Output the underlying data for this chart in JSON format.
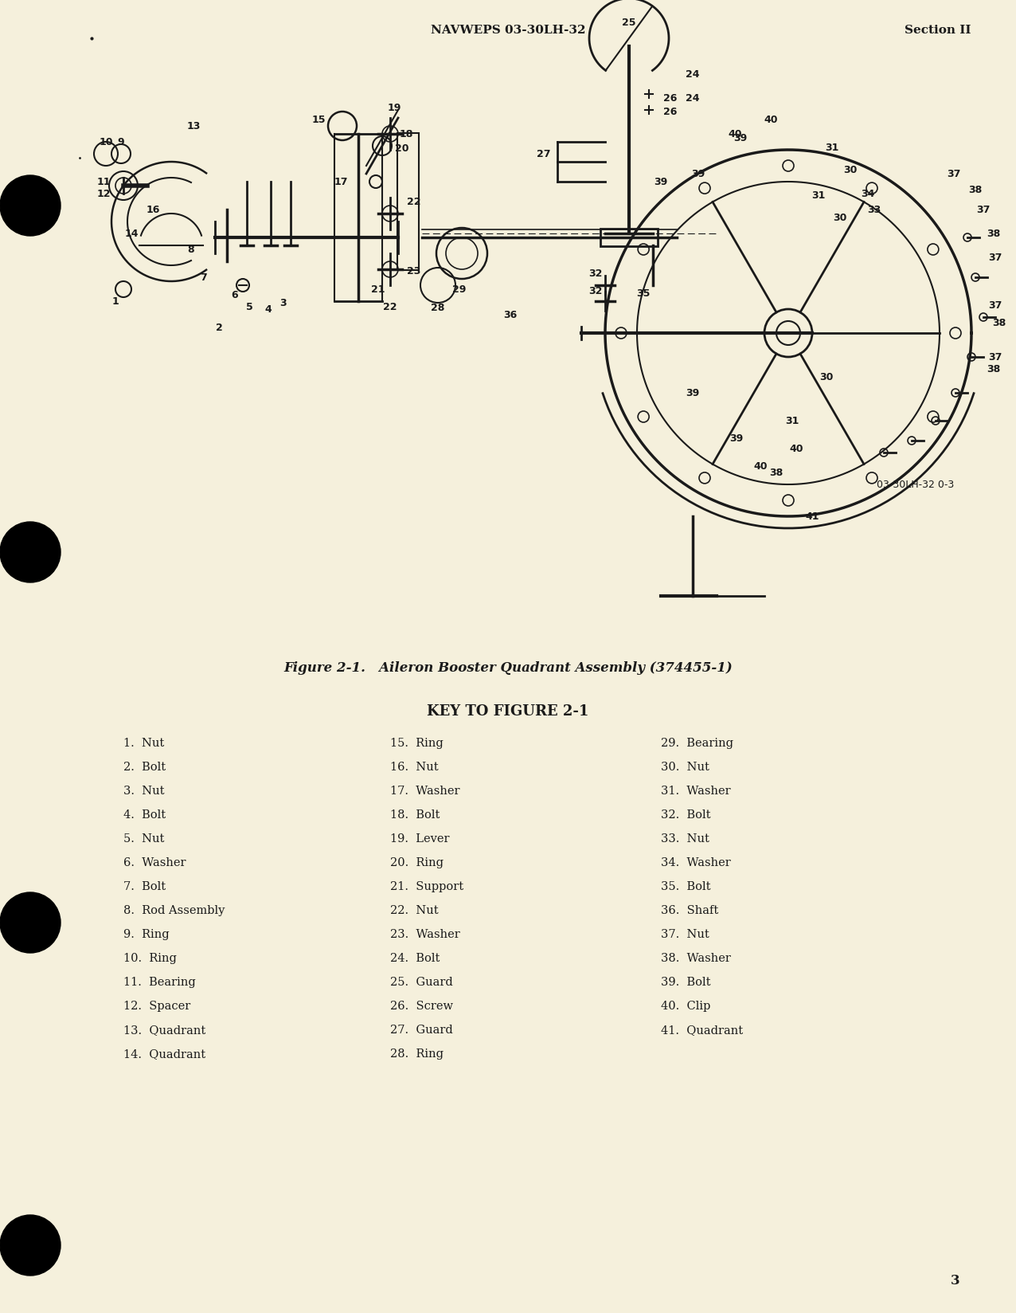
{
  "page_background": "#f5f0dc",
  "header_text": "NAVWEPS 03-30LH-32",
  "header_right": "Section II",
  "figure_caption": "Figure 2-1.   Aileron Booster Quadrant Assembly (374455-1)",
  "key_title": "KEY TO FIGURE 2-1",
  "page_number": "3",
  "key_items_col1": [
    "1.  Nut",
    "2.  Bolt",
    "3.  Nut",
    "4.  Bolt",
    "5.  Nut",
    "6.  Washer",
    "7.  Bolt",
    "8.  Rod Assembly",
    "9.  Ring",
    "10.  Ring",
    "11.  Bearing",
    "12.  Spacer",
    "13.  Quadrant",
    "14.  Quadrant"
  ],
  "key_items_col2": [
    "15.  Ring",
    "16.  Nut",
    "17.  Washer",
    "18.  Bolt",
    "19.  Lever",
    "20.  Ring",
    "21.  Support",
    "22.  Nut",
    "23.  Washer",
    "24.  Bolt",
    "25.  Guard",
    "26.  Screw",
    "27.  Guard",
    "28.  Ring"
  ],
  "key_items_col3": [
    "29.  Bearing",
    "30.  Nut",
    "31.  Washer",
    "32.  Bolt",
    "33.  Nut",
    "34.  Washer",
    "35.  Bolt",
    "36.  Shaft",
    "37.  Nut",
    "38.  Washer",
    "39.  Bolt",
    "40.  Clip",
    "41.  Quadrant",
    ""
  ],
  "text_color": "#1a1a1a",
  "fig_width": 12.76,
  "fig_height": 16.48,
  "diagram_ref": "03-30LH-32 0-3"
}
